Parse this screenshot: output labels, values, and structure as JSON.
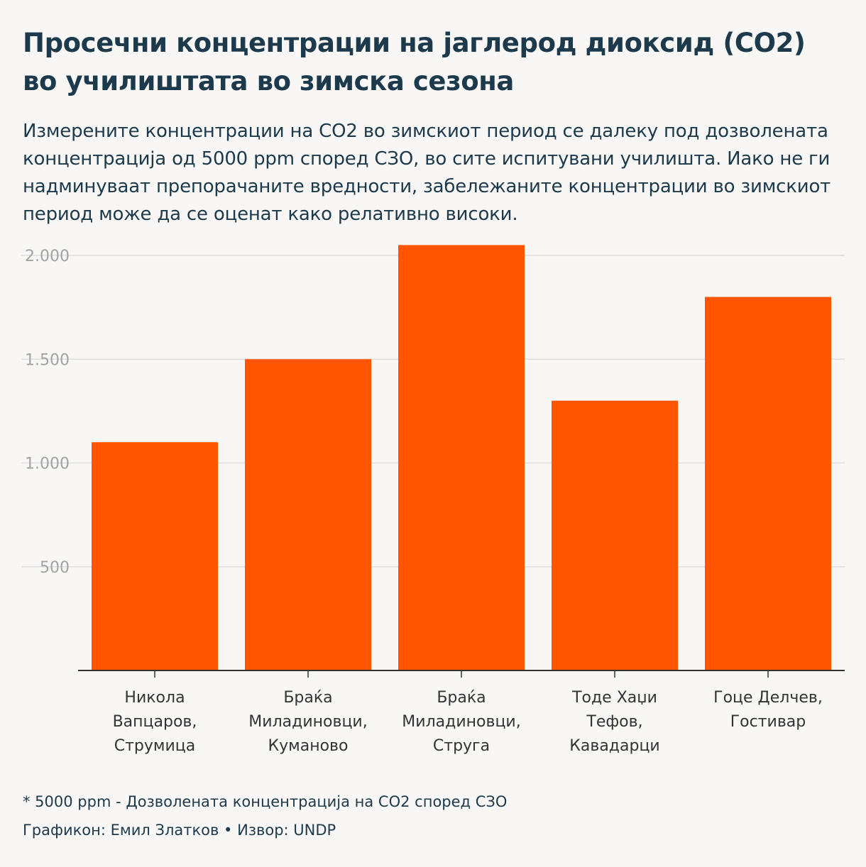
{
  "title": "Просечни концентрации на јаглерод диоксид (CO2) во училиштата во зимска сезона",
  "subtitle": "Измерените концентрации на CO2 во зимскиот период се далеку под дозволената концентрација од 5000 ppm според СЗО, во сите испитувани училишта. Иако не ги надминуваат препорачаните вредности, забележаните концентрации во зимскиот период може да се оценат како релативно високи.",
  "footnote": "* 5000 ppm - Дозволената концентрација на CO2 според СЗО",
  "credit": "Графикон: Емил Златков • Извор: UNDP",
  "colors": {
    "bar": "#ff5500",
    "grid": "#dedede",
    "axis": "#333333"
  },
  "chart_data": {
    "type": "bar",
    "categories": [
      [
        "Никола",
        "Вапцаров,",
        "Струмица"
      ],
      [
        "Браќа",
        "Миладиновци,",
        "Куманово"
      ],
      [
        "Браќа",
        "Миладиновци,",
        "Струга"
      ],
      [
        "Тоде Хаџи",
        "Тефов,",
        "Кавадарци"
      ],
      [
        "Гоце Делчев,",
        "Гостивар"
      ]
    ],
    "values": [
      1100,
      1500,
      2050,
      1300,
      1800
    ],
    "ylim": [
      0,
      2000
    ],
    "yticks": [
      500,
      1000,
      1500,
      2000
    ],
    "ytick_labels": [
      "500",
      "1.000",
      "1.500",
      "2.000"
    ],
    "grid": true,
    "xlabel": "",
    "ylabel": ""
  }
}
